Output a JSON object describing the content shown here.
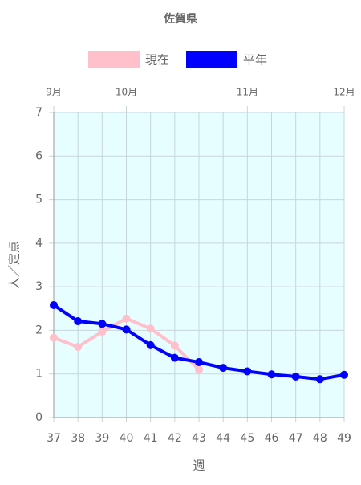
{
  "chart_data": {
    "type": "line",
    "title": "佐賀県",
    "x": [
      37,
      38,
      39,
      40,
      41,
      42,
      43,
      44,
      45,
      46,
      47,
      48,
      49
    ],
    "series": [
      {
        "name": "現在",
        "color": "#ffc0cb",
        "values": [
          1.83,
          1.62,
          1.97,
          2.27,
          2.04,
          1.65,
          1.1,
          null,
          null,
          null,
          null,
          null,
          null
        ]
      },
      {
        "name": "平年",
        "color": "#0000ff",
        "values": [
          2.58,
          2.21,
          2.15,
          2.02,
          1.66,
          1.37,
          1.27,
          1.14,
          1.06,
          0.99,
          0.94,
          0.88,
          0.98
        ]
      }
    ],
    "xlim": [
      37,
      49
    ],
    "xticks": [
      37,
      38,
      39,
      40,
      41,
      42,
      43,
      44,
      45,
      46,
      47,
      48,
      49
    ],
    "x2ticks": [
      {
        "value": 37,
        "label": "9月"
      },
      {
        "value": 40,
        "label": "10月"
      },
      {
        "value": 45,
        "label": "11月"
      },
      {
        "value": 49,
        "label": "12月"
      }
    ],
    "ylim": [
      0,
      7
    ],
    "yticks": [
      0,
      1,
      2,
      3,
      4,
      5,
      6,
      7
    ],
    "xlabel": "週",
    "ylabel": "人／定点",
    "grid": true,
    "legend": "top"
  }
}
